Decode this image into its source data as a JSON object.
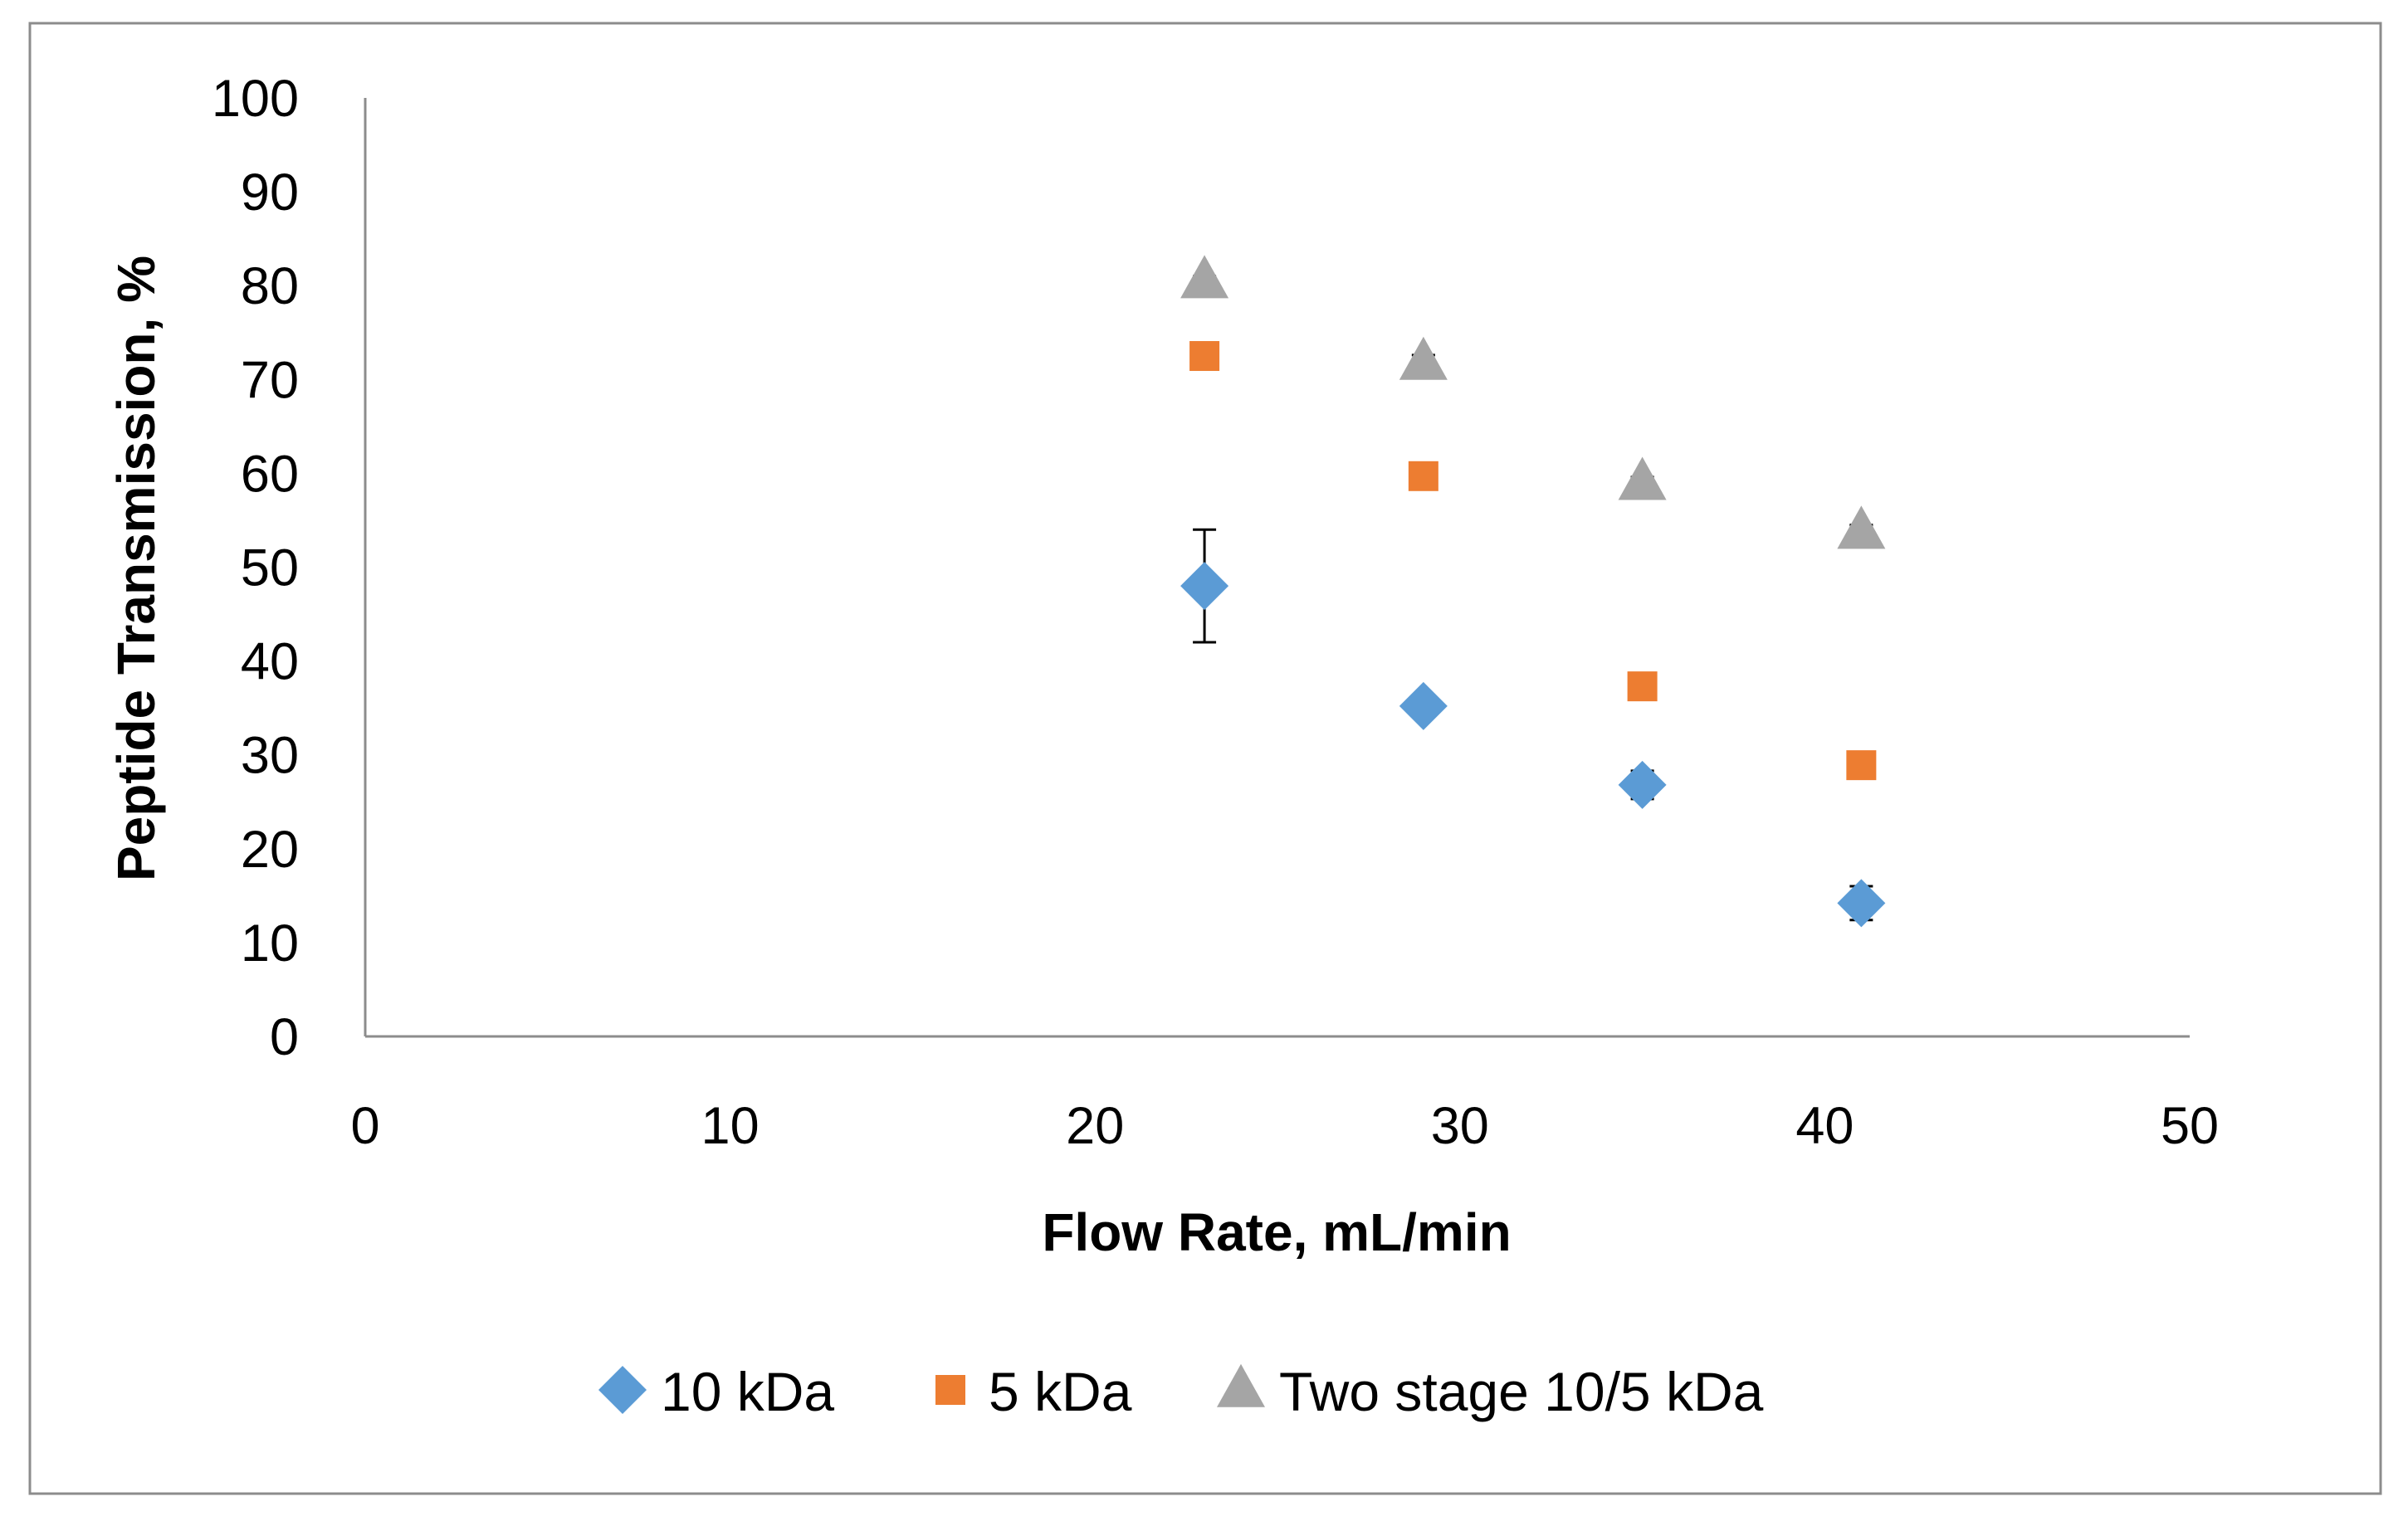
{
  "chart_data": {
    "type": "scatter",
    "title": "",
    "xlabel": "Flow Rate, mL/min",
    "ylabel": "Peptide Transmission, %",
    "xlim": [
      0,
      50
    ],
    "ylim": [
      0,
      100
    ],
    "xticks": [
      "0",
      "10",
      "20",
      "30",
      "40",
      "50"
    ],
    "yticks": [
      "0",
      "10",
      "20",
      "30",
      "40",
      "50",
      "60",
      "70",
      "80",
      "90",
      "100"
    ],
    "legend": "bottom",
    "grid": false,
    "series": [
      {
        "name": "10 kDa",
        "marker": "diamond",
        "color": "#5B9BD5",
        "points": [
          {
            "x": 23,
            "y": 48,
            "err": 6
          },
          {
            "x": 29,
            "y": 35.2,
            "err": 0.8
          },
          {
            "x": 35,
            "y": 26.8,
            "err": 1.5
          },
          {
            "x": 41,
            "y": 14.2,
            "err": 1.8
          }
        ]
      },
      {
        "name": "5 kDa",
        "marker": "square",
        "color": "#ED7D31",
        "points": [
          {
            "x": 23,
            "y": 72.5,
            "err": 0.6
          },
          {
            "x": 29,
            "y": 59.7,
            "err": 0.6
          },
          {
            "x": 35,
            "y": 37.3,
            "err": 0.6
          },
          {
            "x": 41,
            "y": 28.9,
            "err": 0.6
          }
        ]
      },
      {
        "name": "Two stage 10/5 kDa",
        "marker": "triangle",
        "color": "#A5A5A5",
        "points": [
          {
            "x": 23,
            "y": 80.5,
            "err": 0.5
          },
          {
            "x": 29,
            "y": 71.8,
            "err": 0.8
          },
          {
            "x": 35,
            "y": 59,
            "err": 0.6
          },
          {
            "x": 41,
            "y": 53.8,
            "err": 0.7
          }
        ]
      }
    ]
  }
}
